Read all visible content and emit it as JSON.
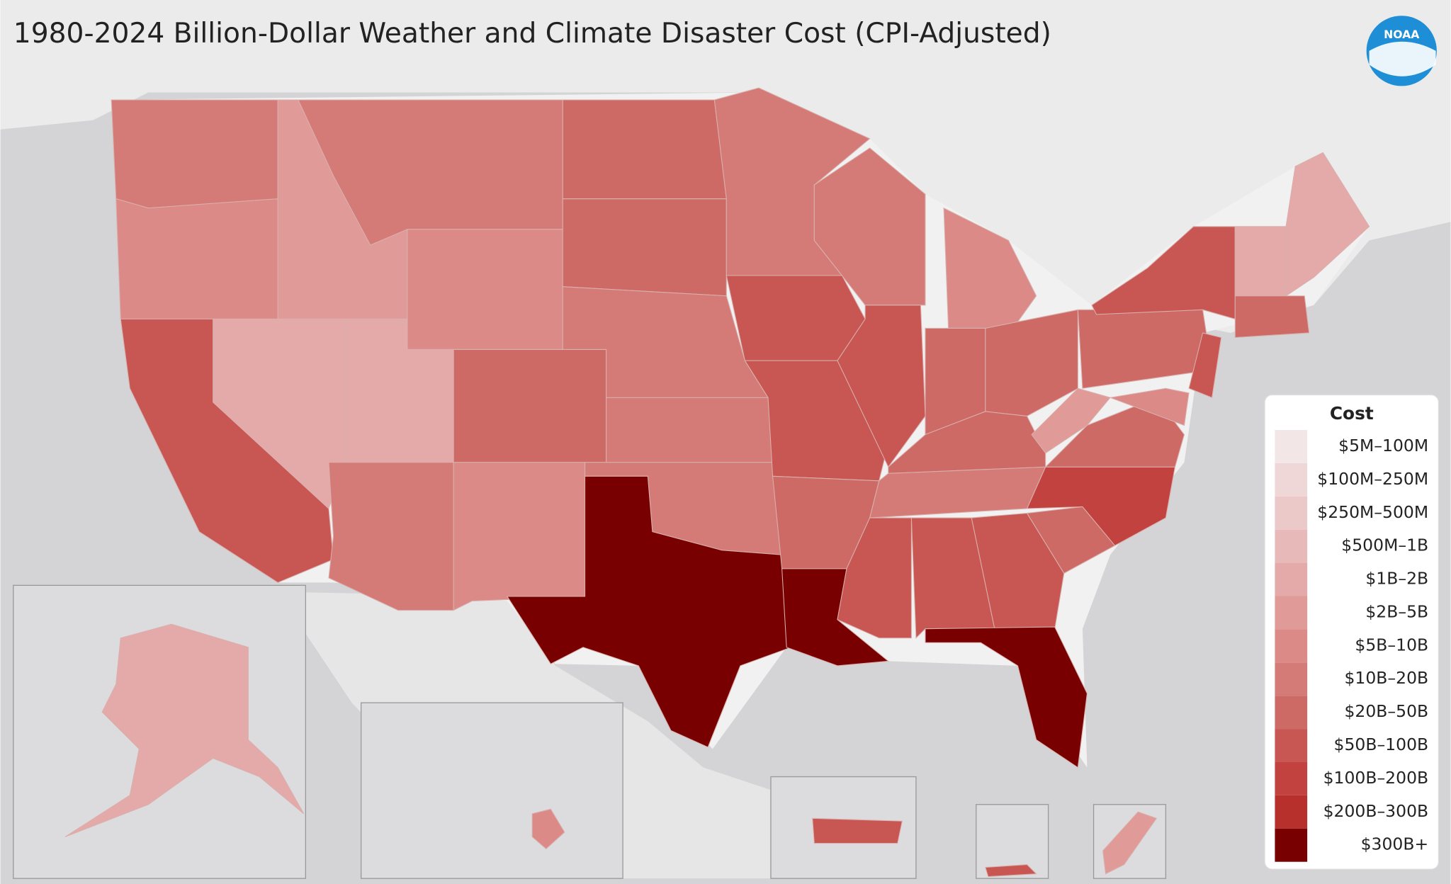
{
  "title": "1980-2024 Billion-Dollar Weather and Climate Disaster Cost (CPI-Adjusted)",
  "logo": "NOAA",
  "legend": {
    "title": "Cost",
    "items": [
      {
        "label": "$5M–100M",
        "color": "#f3e6e6"
      },
      {
        "label": "$100M–250M",
        "color": "#efd7d7"
      },
      {
        "label": "$250M–500M",
        "color": "#ebc9c9"
      },
      {
        "label": "$500M–1B",
        "color": "#e8b9b9"
      },
      {
        "label": "$1B–2B",
        "color": "#e4a9a9"
      },
      {
        "label": "$2B–5B",
        "color": "#e09a98"
      },
      {
        "label": "$5B–10B",
        "color": "#db8a87"
      },
      {
        "label": "$10B–20B",
        "color": "#d57b77"
      },
      {
        "label": "$20B–50B",
        "color": "#ce6a66"
      },
      {
        "label": "$50B–100B",
        "color": "#c85652"
      },
      {
        "label": "$100B–200B",
        "color": "#c1423e"
      },
      {
        "label": "$200B–300B",
        "color": "#b7302c"
      },
      {
        "label": "$300B+",
        "color": "#790000"
      }
    ]
  },
  "map": {
    "regions": [
      7,
      6,
      9,
      5,
      4,
      7,
      6,
      4,
      7,
      8,
      6,
      8,
      8,
      7,
      7,
      7,
      12,
      7,
      9,
      9,
      8,
      12,
      7,
      9,
      6,
      8,
      8,
      8,
      7,
      9,
      9,
      9,
      12,
      8,
      10,
      8,
      5,
      8,
      9,
      9,
      6,
      4,
      4,
      8,
      4,
      6,
      9,
      9,
      5
    ]
  }
}
